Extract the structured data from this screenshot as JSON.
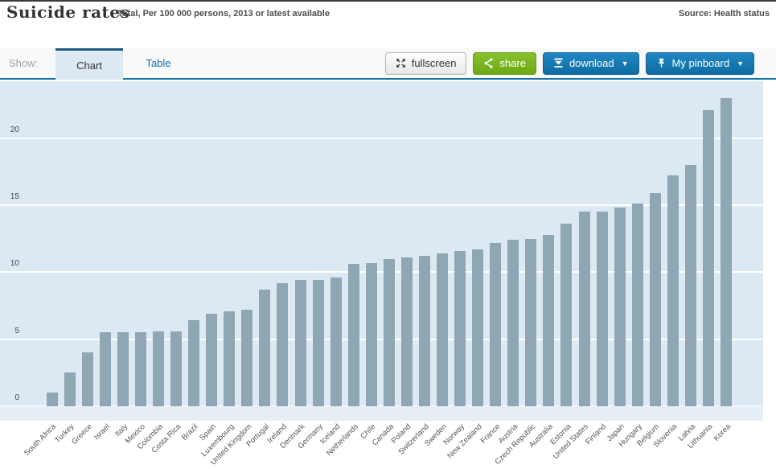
{
  "header": {
    "title": "Suicide rates",
    "subtitle": "Total, Per 100 000 persons, 2013 or latest available",
    "source": "Source: Health status"
  },
  "toolbar": {
    "show_label": "Show:",
    "tabs": [
      {
        "label": "Chart",
        "active": true
      },
      {
        "label": "Table",
        "active": false
      }
    ],
    "buttons": [
      {
        "label": "fullscreen"
      },
      {
        "label": "share"
      },
      {
        "label": "download",
        "dropdown": "▼"
      },
      {
        "label": "My pinboard",
        "dropdown": "▼"
      }
    ]
  },
  "chart_data": {
    "type": "bar",
    "title": "Suicide rates",
    "subtitle": "Total, Per 100 000 persons, 2013 or latest available",
    "ylabel": "Per 100 000 persons",
    "xlabel": "",
    "ylim": [
      0,
      24.25
    ],
    "yticks": [
      0,
      5,
      10,
      15,
      20
    ],
    "grid": "horizontal-white-lines",
    "legend": "none",
    "bar_color": "#8fa6b4",
    "plot_bg": "#dce9f2",
    "categories": [
      "South Africa",
      "Turkey",
      "Greece",
      "Israel",
      "Italy",
      "Mexico",
      "Colombia",
      "Costa Rica",
      "Brazil",
      "Spain",
      "Luxembourg",
      "United Kingdom",
      "Portugal",
      "Ireland",
      "Denmark",
      "Germany",
      "Iceland",
      "Netherlands",
      "Chile",
      "Canada",
      "Poland",
      "Switzerland",
      "Sweden",
      "Norway",
      "New Zealand",
      "France",
      "Austria",
      "Czech Republic",
      "Australia",
      "Estonia",
      "United States",
      "Finland",
      "Japan",
      "Hungary",
      "Belgium",
      "Slovenia",
      "Latvia",
      "Lithuania",
      "Korea"
    ],
    "values": [
      1.0,
      2.5,
      4.0,
      5.5,
      5.5,
      5.5,
      5.6,
      5.6,
      6.4,
      6.9,
      7.1,
      7.2,
      8.7,
      9.2,
      9.4,
      9.4,
      9.6,
      10.6,
      10.7,
      11.0,
      11.1,
      11.2,
      11.4,
      11.6,
      11.7,
      12.2,
      12.4,
      12.5,
      12.8,
      13.6,
      14.5,
      14.5,
      14.8,
      15.1,
      15.9,
      17.2,
      18.0,
      22.1,
      23.0
    ]
  },
  "colors": {
    "accent_blue": "#1173ae",
    "active_tab_border": "#1d5a7f",
    "button_green": "#76b024",
    "button_blue": "#1578b3",
    "plot_background": "#dce9f2",
    "axis_band_background": "#e6eff6",
    "bar_color": "#8fa6b4"
  }
}
